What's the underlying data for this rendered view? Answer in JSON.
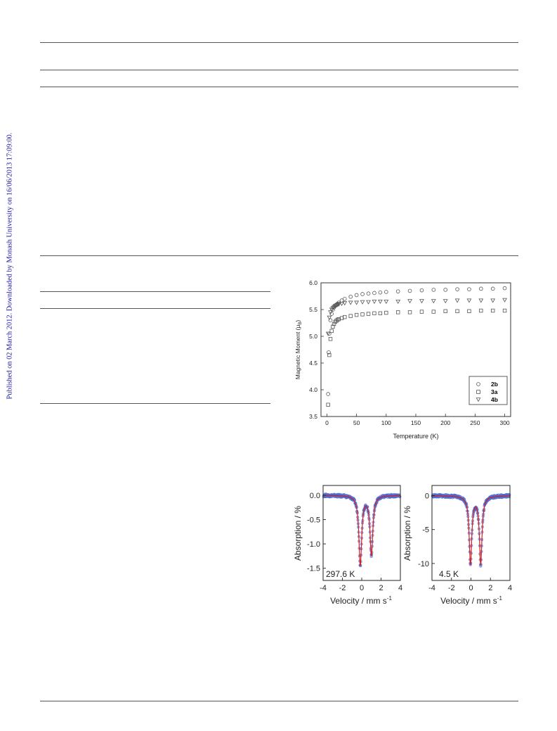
{
  "watermark": "Published on 02 March 2012. Downloaded by Monash University on 16/06/2013 17:09:00.",
  "chart_data": [
    {
      "type": "scatter",
      "xlabel": "Temperature (K)",
      "ylabel_main": "Magnetic Moment (",
      "ylabel_mu": "μ",
      "ylabel_sub": "B",
      "ylabel_close": ")",
      "xlim": [
        -10,
        310
      ],
      "ylim": [
        3.5,
        6.0
      ],
      "xticks": [
        0,
        50,
        100,
        150,
        200,
        250,
        300
      ],
      "yticks": [
        "3.5",
        "4.0",
        "4.5",
        "5.0",
        "5.5",
        "6.0"
      ],
      "legend_position": "bottom-right",
      "series": [
        {
          "name": "2b",
          "marker": "circle",
          "x": [
            2,
            3,
            4,
            6,
            8,
            10,
            12,
            14,
            16,
            18,
            20,
            25,
            30,
            40,
            50,
            60,
            70,
            80,
            90,
            100,
            120,
            140,
            160,
            180,
            200,
            220,
            240,
            260,
            280,
            300
          ],
          "y": [
            3.92,
            4.7,
            5.05,
            5.3,
            5.42,
            5.5,
            5.54,
            5.57,
            5.59,
            5.61,
            5.63,
            5.67,
            5.7,
            5.74,
            5.77,
            5.79,
            5.8,
            5.81,
            5.82,
            5.83,
            5.84,
            5.85,
            5.86,
            5.87,
            5.87,
            5.88,
            5.88,
            5.89,
            5.89,
            5.9
          ]
        },
        {
          "name": "3a",
          "marker": "square",
          "x": [
            2,
            4,
            6,
            8,
            10,
            12,
            14,
            16,
            18,
            20,
            25,
            30,
            40,
            50,
            60,
            70,
            80,
            90,
            100,
            120,
            140,
            160,
            180,
            200,
            220,
            240,
            260,
            280,
            300
          ],
          "y": [
            3.72,
            4.65,
            4.95,
            5.1,
            5.18,
            5.23,
            5.27,
            5.29,
            5.31,
            5.32,
            5.34,
            5.36,
            5.38,
            5.4,
            5.41,
            5.42,
            5.43,
            5.43,
            5.44,
            5.45,
            5.45,
            5.46,
            5.46,
            5.47,
            5.47,
            5.47,
            5.48,
            5.48,
            5.48
          ]
        },
        {
          "name": "4b",
          "marker": "triangle-down",
          "x": [
            2,
            4,
            6,
            8,
            10,
            12,
            14,
            16,
            18,
            20,
            25,
            30,
            40,
            50,
            60,
            70,
            80,
            90,
            100,
            120,
            140,
            160,
            180,
            200,
            220,
            240,
            260,
            280,
            300
          ],
          "y": [
            5.05,
            5.35,
            5.45,
            5.5,
            5.53,
            5.55,
            5.57,
            5.58,
            5.59,
            5.6,
            5.61,
            5.62,
            5.63,
            5.63,
            5.64,
            5.64,
            5.65,
            5.65,
            5.65,
            5.65,
            5.66,
            5.66,
            5.66,
            5.66,
            5.67,
            5.67,
            5.67,
            5.67,
            5.68
          ]
        }
      ]
    },
    {
      "type": "line",
      "annotation": "297.6 K",
      "xlabel_main": "Velocity / mm s",
      "xlabel_sup": "-1",
      "ylabel": "Absorption / %",
      "xlim": [
        -4,
        4
      ],
      "ylim": [
        -1.75,
        0.2
      ],
      "xticks": [
        "-4",
        "-2",
        "0",
        "2",
        "4"
      ],
      "yticks": [
        0.0,
        -0.5,
        -1.0,
        -1.5
      ],
      "ytick_labels": [
        "0.0",
        "-0.5",
        "-1.0",
        "-1.5"
      ],
      "fit_color": "#d62020",
      "data_color": "#5b78d6",
      "peaks": [
        {
          "center": -0.15,
          "depth": 1.42,
          "width": 0.35
        },
        {
          "center": 1.0,
          "depth": 1.22,
          "width": 0.35
        }
      ]
    },
    {
      "type": "line",
      "annotation": "4.5 K",
      "xlabel_main": "Velocity / mm s",
      "xlabel_sup": "-1",
      "ylabel": "Absorption / %",
      "xlim": [
        -4,
        4
      ],
      "ylim": [
        -12.5,
        1.5
      ],
      "xticks": [
        "-4",
        "-2",
        "0",
        "2",
        "4"
      ],
      "yticks": [
        0,
        -5,
        -10
      ],
      "ytick_labels": [
        "0",
        "-5",
        "-10"
      ],
      "fit_color": "#d62020",
      "data_color": "#5b78d6",
      "peaks": [
        {
          "center": -0.05,
          "depth": 10.0,
          "width": 0.32
        },
        {
          "center": 1.0,
          "depth": 10.0,
          "width": 0.32
        }
      ]
    }
  ]
}
